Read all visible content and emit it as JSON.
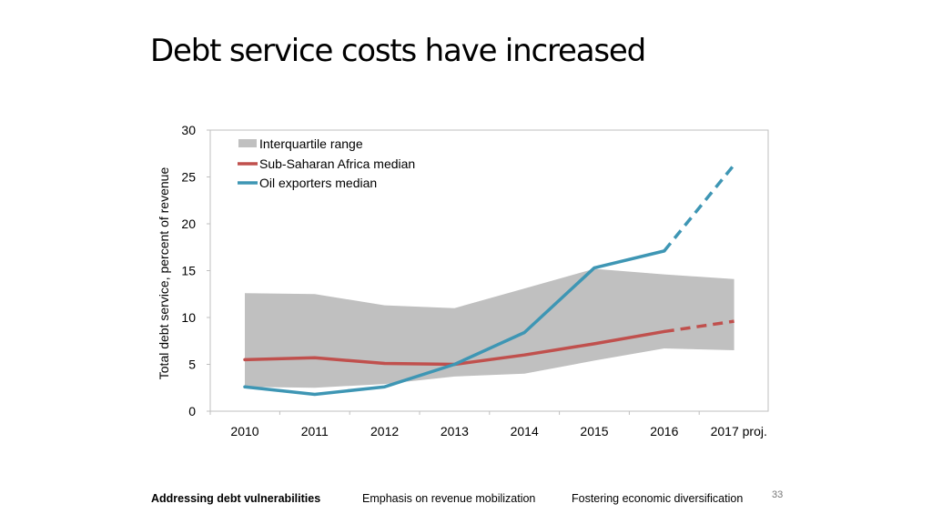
{
  "slide": {
    "title": "Debt service costs have increased",
    "page_number": "33"
  },
  "footer": {
    "items": [
      {
        "label": "Addressing debt vulnerabilities",
        "active": true
      },
      {
        "label": "Emphasis on revenue mobilization",
        "active": false
      },
      {
        "label": "Fostering economic diversification",
        "active": false
      }
    ]
  },
  "colors": {
    "band": "#c0c0c0",
    "ssa_median": "#c0504d",
    "oil_median": "#3e96b4",
    "axis": "#bfbfbf"
  },
  "chart_data": {
    "type": "line",
    "title": "",
    "xlabel": "",
    "ylabel": "Total debt service, percent of revenue",
    "categories": [
      "2010",
      "2011",
      "2012",
      "2013",
      "2014",
      "2015",
      "2016",
      "2017 proj."
    ],
    "ylim": [
      0,
      30
    ],
    "yticks": [
      0,
      5,
      10,
      15,
      20,
      25,
      30
    ],
    "grid": false,
    "legend_position": "top-left",
    "band": {
      "name": "Interquartile range",
      "lower": [
        2.6,
        2.5,
        2.9,
        3.7,
        4.0,
        5.4,
        6.7,
        6.5
      ],
      "upper": [
        12.6,
        12.5,
        11.3,
        11.0,
        13.1,
        15.2,
        14.6,
        14.1
      ]
    },
    "series": [
      {
        "name": "Sub-Saharan Africa median",
        "values": [
          5.5,
          5.7,
          5.1,
          5.0,
          6.0,
          7.2,
          8.5,
          9.6
        ],
        "projected_from_index": 6
      },
      {
        "name": "Oil exporters median",
        "values": [
          2.6,
          1.8,
          2.6,
          5.0,
          8.4,
          15.3,
          17.1,
          26.3
        ],
        "projected_from_index": 6
      }
    ]
  }
}
